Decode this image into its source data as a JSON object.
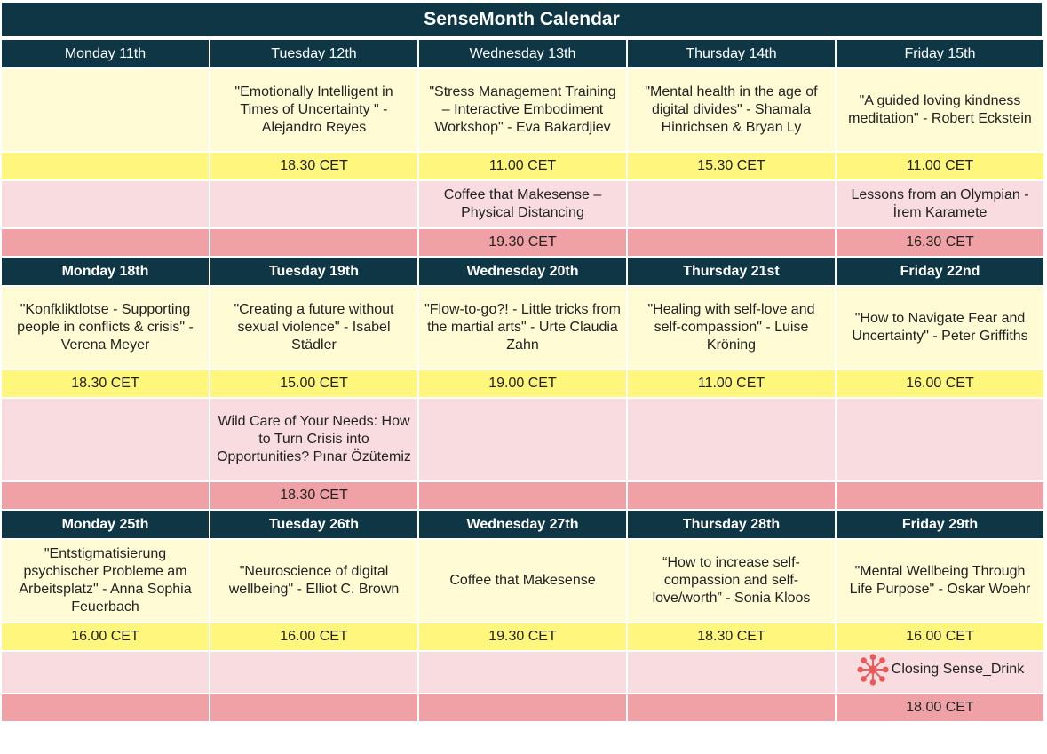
{
  "title": "SenseMonth Calendar",
  "colors": {
    "header": "#0e3645",
    "event_bg": "#fffbd5",
    "time_bg": "#fff67d",
    "side_event_bg": "#f9dcdf",
    "side_time_bg": "#efa1a5",
    "icon": "#e85a5a"
  },
  "weeks": [
    {
      "days": [
        "Monday 11th",
        "Tuesday 12th",
        "Wednesday 13th",
        "Thursday 14th",
        "Friday 15th"
      ],
      "events": [
        "",
        "\"Emotionally Intelligent in Times of Uncertainty \" - Alejandro Reyes",
        "\"Stress Management Training – Interactive Embodiment Workshop\" - Eva Bakardjiev",
        "\"Mental health in the age of digital divides\" - Shamala Hinrichsen & Bryan Ly",
        "\"A guided loving kindness meditation\" - Robert Eckstein"
      ],
      "times": [
        "",
        "18.30 CET",
        "11.00 CET",
        "15.30 CET",
        "11.00 CET"
      ],
      "side_events": [
        "",
        "",
        "Coffee that Makesense – Physical Distancing",
        "",
        "Lessons from an Olympian - İrem Karamete"
      ],
      "side_times": [
        "",
        "",
        "19.30 CET",
        "",
        "16.30 CET"
      ]
    },
    {
      "days": [
        "Monday 18th",
        "Tuesday 19th",
        "Wednesday 20th",
        "Thursday 21st",
        "Friday 22nd"
      ],
      "events": [
        "\"Konfkliktlotse - Supporting people in conflicts & crisis\" - Verena Meyer",
        "\"Creating a future without sexual violence\" - Isabel Städler",
        "\"Flow-to-go?! - Little tricks from the martial arts\" - Urte Claudia Zahn",
        "\"Healing with self-love and self-compassion\" - Luise Kröning",
        "\"How to Navigate Fear and Uncertainty\" - Peter Griffiths"
      ],
      "times": [
        "18.30 CET",
        "15.00 CET",
        "19.00 CET",
        "11.00 CET",
        "16.00 CET"
      ],
      "side_events": [
        "",
        "Wild Care of Your Needs: How to Turn Crisis into Opportunities? Pınar Özütemiz",
        "",
        "",
        ""
      ],
      "side_times": [
        "",
        "18.30 CET",
        "",
        "",
        ""
      ]
    },
    {
      "days": [
        "Monday 25th",
        "Tuesday 26th",
        "Wednesday 27th",
        "Thursday 28th",
        "Friday 29th"
      ],
      "events": [
        "\"Entstigmatisierung psychischer Probleme am Arbeitsplatz\" - Anna Sophia Feuerbach",
        "\"Neuroscience of digital wellbeing\" - Elliot C. Brown",
        "Coffee that Makesense",
        "“How to increase self-compassion and self-love/worth” - Sonia Kloos",
        "\"Mental Wellbeing Through Life Purpose\" - Oskar Woehr"
      ],
      "times": [
        "16.00 CET",
        "16.00 CET",
        "19.30 CET",
        "18.30 CET",
        "16.00 CET"
      ],
      "side_events": [
        "",
        "",
        "",
        "",
        "Closing Sense_Drink"
      ],
      "side_times": [
        "",
        "",
        "",
        "",
        "18.00 CET"
      ],
      "side_event_icon": "network-molecule-icon"
    }
  ]
}
